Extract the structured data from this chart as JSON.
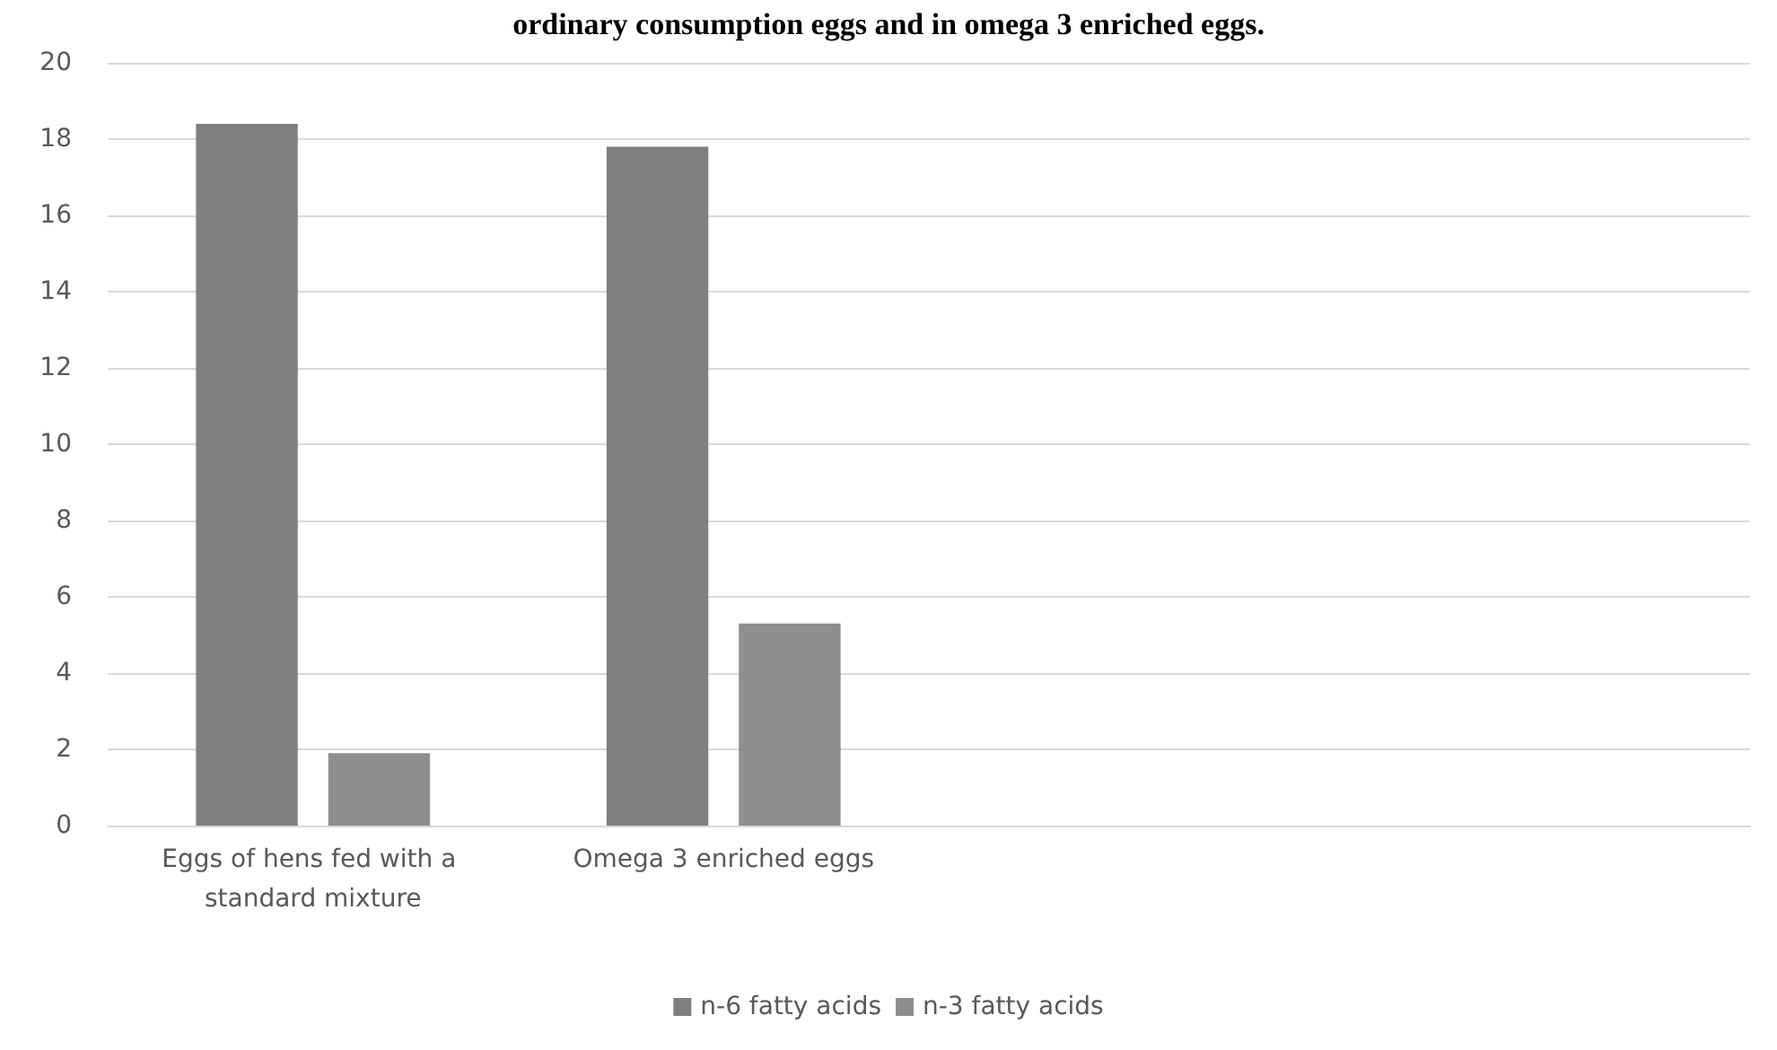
{
  "chart_data": {
    "type": "bar",
    "title": "ordinary consumption eggs and in omega 3 enriched eggs.",
    "categories": [
      "Eggs of hens fed with a standard mixture",
      "Omega 3 enriched eggs",
      null,
      null
    ],
    "series": [
      {
        "name": "n-6 fatty acids",
        "color": "#7f7f7f",
        "values": [
          18.4,
          17.8,
          null,
          null
        ]
      },
      {
        "name": "n-3 fatty acids",
        "color": "#8e8e8e",
        "values": [
          1.9,
          5.3,
          null,
          null
        ]
      }
    ],
    "ylim": [
      0,
      20
    ],
    "yticks": [
      0,
      2,
      4,
      6,
      8,
      10,
      12,
      14,
      16,
      18,
      20
    ],
    "grid": "y",
    "legend": "bottom"
  }
}
